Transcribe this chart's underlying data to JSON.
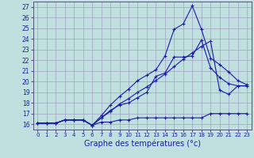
{
  "title": "Graphe des températures (°c)",
  "background_color": "#c0e0e0",
  "line_color": "#1a1aaa",
  "grid_color": "#a0a0c0",
  "xlim": [
    -0.5,
    23.5
  ],
  "ylim": [
    15.5,
    27.5
  ],
  "xticks": [
    0,
    1,
    2,
    3,
    4,
    5,
    6,
    7,
    8,
    9,
    10,
    11,
    12,
    13,
    14,
    15,
    16,
    17,
    18,
    19,
    20,
    21,
    22,
    23
  ],
  "yticks": [
    16,
    17,
    18,
    19,
    20,
    21,
    22,
    23,
    24,
    25,
    26,
    27
  ],
  "series": [
    [
      16.1,
      16.1,
      16.1,
      16.4,
      16.4,
      16.4,
      15.9,
      16.2,
      16.2,
      16.4,
      16.4,
      16.6,
      16.6,
      16.6,
      16.6,
      16.6,
      16.6,
      16.6,
      16.6,
      17.0,
      17.0,
      17.0,
      17.0,
      17.0
    ],
    [
      16.1,
      16.1,
      16.1,
      16.4,
      16.4,
      16.4,
      15.9,
      16.6,
      17.3,
      17.8,
      18.0,
      18.5,
      19.0,
      20.5,
      20.8,
      22.3,
      22.3,
      22.4,
      23.9,
      21.3,
      20.4,
      19.8,
      19.6,
      19.6
    ],
    [
      16.1,
      16.1,
      16.1,
      16.4,
      16.4,
      16.4,
      15.9,
      16.8,
      17.8,
      18.6,
      19.3,
      20.1,
      20.6,
      21.1,
      22.4,
      24.9,
      25.4,
      27.1,
      24.9,
      22.2,
      21.6,
      20.9,
      20.1,
      19.7
    ],
    [
      16.1,
      16.1,
      16.1,
      16.4,
      16.4,
      16.4,
      15.9,
      16.6,
      17.2,
      17.9,
      18.4,
      19.0,
      19.5,
      20.1,
      20.7,
      21.4,
      22.1,
      22.7,
      23.3,
      23.8,
      19.2,
      18.8,
      19.6,
      19.6
    ]
  ]
}
